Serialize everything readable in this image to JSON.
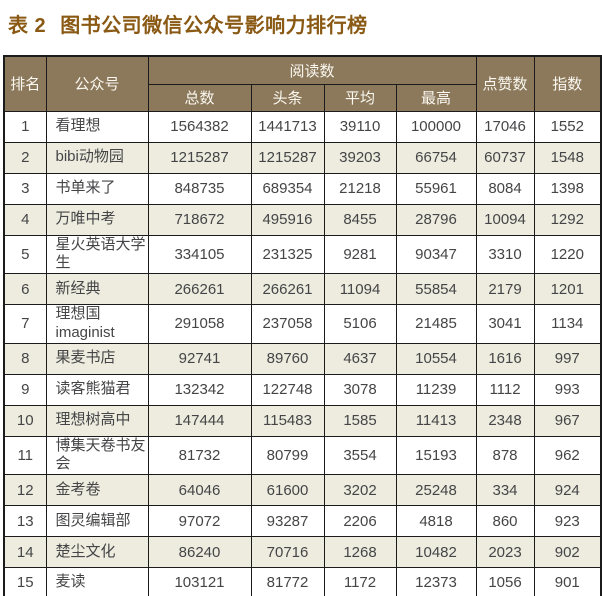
{
  "title": {
    "prefix": "表 2",
    "text": "图书公司微信公众号影响力排行榜"
  },
  "table": {
    "headers": {
      "rank": "排名",
      "account": "公众号",
      "reads_group": "阅读数",
      "reads_total": "总数",
      "reads_headline": "头条",
      "reads_avg": "平均",
      "reads_max": "最高",
      "likes": "点赞数",
      "index": "指数"
    },
    "rows": [
      {
        "rank": "1",
        "account": "看理想",
        "total": "1564382",
        "headline": "1441713",
        "avg": "39110",
        "max": "100000",
        "likes": "17046",
        "index": "1552"
      },
      {
        "rank": "2",
        "account": "bibi动物园",
        "total": "1215287",
        "headline": "1215287",
        "avg": "39203",
        "max": "66754",
        "likes": "60737",
        "index": "1548"
      },
      {
        "rank": "3",
        "account": "书单来了",
        "total": "848735",
        "headline": "689354",
        "avg": "21218",
        "max": "55961",
        "likes": "8084",
        "index": "1398"
      },
      {
        "rank": "4",
        "account": "万唯中考",
        "total": "718672",
        "headline": "495916",
        "avg": "8455",
        "max": "28796",
        "likes": "10094",
        "index": "1292"
      },
      {
        "rank": "5",
        "account": "星火英语大学生",
        "total": "334105",
        "headline": "231325",
        "avg": "9281",
        "max": "90347",
        "likes": "3310",
        "index": "1220"
      },
      {
        "rank": "6",
        "account": "新经典",
        "total": "266261",
        "headline": "266261",
        "avg": "11094",
        "max": "55854",
        "likes": "2179",
        "index": "1201"
      },
      {
        "rank": "7",
        "account": "理想国\nimaginist",
        "total": "291058",
        "headline": "237058",
        "avg": "5106",
        "max": "21485",
        "likes": "3041",
        "index": "1134"
      },
      {
        "rank": "8",
        "account": "果麦书店",
        "total": "92741",
        "headline": "89760",
        "avg": "4637",
        "max": "10554",
        "likes": "1616",
        "index": "997"
      },
      {
        "rank": "9",
        "account": "读客熊猫君",
        "total": "132342",
        "headline": "122748",
        "avg": "3078",
        "max": "11239",
        "likes": "1112",
        "index": "993"
      },
      {
        "rank": "10",
        "account": "理想树高中",
        "total": "147444",
        "headline": "115483",
        "avg": "1585",
        "max": "11413",
        "likes": "2348",
        "index": "967"
      },
      {
        "rank": "11",
        "account": "博集天卷书友会",
        "total": "81732",
        "headline": "80799",
        "avg": "3554",
        "max": "15193",
        "likes": "878",
        "index": "962"
      },
      {
        "rank": "12",
        "account": "金考卷",
        "total": "64046",
        "headline": "61600",
        "avg": "3202",
        "max": "25248",
        "likes": "334",
        "index": "924"
      },
      {
        "rank": "13",
        "account": "图灵编辑部",
        "total": "97072",
        "headline": "93287",
        "avg": "2206",
        "max": "4818",
        "likes": "860",
        "index": "923"
      },
      {
        "rank": "14",
        "account": "楚尘文化",
        "total": "86240",
        "headline": "70716",
        "avg": "1268",
        "max": "10482",
        "likes": "2023",
        "index": "902"
      },
      {
        "rank": "15",
        "account": "麦读",
        "total": "103121",
        "headline": "81772",
        "avg": "1172",
        "max": "12373",
        "likes": "1056",
        "index": "901"
      }
    ]
  },
  "colors": {
    "title_text": "#8a5a15",
    "header_bg": "#8c795c",
    "header_text": "#faf8f0",
    "row_alt_bg": "#edecdf",
    "body_text": "#454547",
    "border": "#1b1b1b"
  }
}
